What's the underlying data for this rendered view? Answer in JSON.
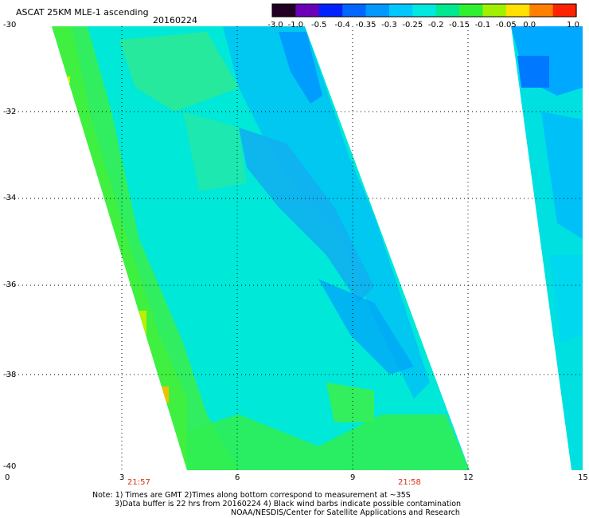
{
  "header": {
    "title": "ASCAT 25KM MLE-1 ascending",
    "date": "20160224"
  },
  "colorbar": {
    "labels": [
      "-3.0",
      "-1.0",
      "-0.5",
      "-0.4",
      "-0.35",
      "-0.3",
      "-0.25",
      "-0.2",
      "-0.15",
      "-0.1",
      "-0.05",
      "0.0",
      "1.0"
    ],
    "colors": [
      "#220022",
      "#6a00b8",
      "#0022ff",
      "#0066ff",
      "#0099ff",
      "#00c8ff",
      "#00e8e0",
      "#00e890",
      "#30f030",
      "#a0f000",
      "#ffe000",
      "#ff8000",
      "#ff2200"
    ]
  },
  "axes": {
    "y_labels": [
      "-30",
      "-32",
      "-34",
      "-36",
      "-38",
      "-40"
    ],
    "x_labels": [
      "0",
      "3",
      "6",
      "9",
      "12",
      "15"
    ],
    "time_labels": [
      "21:57",
      "21:58"
    ]
  },
  "notes": {
    "line1": "Note: 1) Times are GMT 2)Times along bottom correspond to measurement at ~35S",
    "line2": "3)Data buffer is 22 hrs from 20160224 4) Black wind barbs indicate possible contamination",
    "line3": "NOAA/NESDIS/Center for Satellite Applications and Research"
  },
  "colors": {
    "swath_base": "#00e8d0",
    "swath_green": "#30f060",
    "swath_blue": "#00b8ff",
    "grid": "#000000",
    "time_label": "#d83010"
  }
}
